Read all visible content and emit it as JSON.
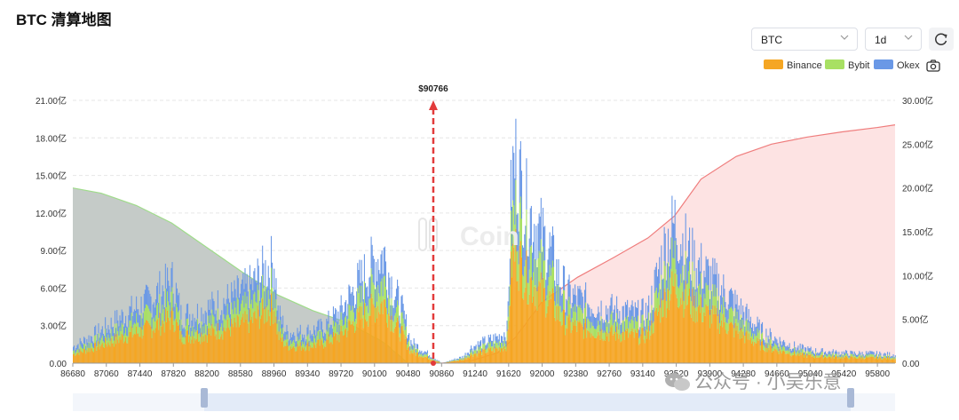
{
  "header": {
    "title": "BTC 清算地图"
  },
  "controls": {
    "coin_select": {
      "value": "BTC"
    },
    "period_select": {
      "value": "1d"
    },
    "refresh_icon": "refresh-icon",
    "camera_icon": "camera-icon"
  },
  "legend": [
    {
      "name": "Binance",
      "color": "#f5a623"
    },
    {
      "name": "Bybit",
      "color": "#a8e063"
    },
    {
      "name": "Okex",
      "color": "#6a98e6"
    }
  ],
  "watermark": {
    "text": "公众号 · 小吴乐意",
    "brand": "Coin"
  },
  "chart_data": {
    "type": "bar",
    "current_price_label": "$90766",
    "current_price": 90766,
    "x_ticks": [
      "86680",
      "87060",
      "87440",
      "87820",
      "88200",
      "88580",
      "88960",
      "89340",
      "89720",
      "90100",
      "90480",
      "90860",
      "91240",
      "91620",
      "92000",
      "92380",
      "92760",
      "93140",
      "93520",
      "93900",
      "94280",
      "94660",
      "95040",
      "95420",
      "95800"
    ],
    "x_range": [
      86680,
      96000
    ],
    "y_left": {
      "ticks": [
        "0.00",
        "3.00亿",
        "6.00亿",
        "9.00亿",
        "12.00亿",
        "15.00亿",
        "18.00亿",
        "21.00亿"
      ],
      "range": [
        0,
        21
      ]
    },
    "y_right": {
      "ticks": [
        "0.00",
        "5.00亿",
        "10.00亿",
        "15.00亿",
        "20.00亿",
        "25.00亿",
        "30.00亿"
      ],
      "range": [
        0,
        30
      ]
    },
    "grid": true,
    "legend_position": "top-right",
    "bar_profile_total": {
      "x": [
        86680,
        86900,
        87100,
        87300,
        87500,
        87700,
        87820,
        87900,
        88100,
        88300,
        88500,
        88700,
        88800,
        88960,
        89000,
        89100,
        89300,
        89500,
        89700,
        89900,
        90000,
        90100,
        90200,
        90300,
        90400,
        90480,
        90500,
        90860,
        91100,
        91200,
        91300,
        91500,
        91600,
        91650,
        91700,
        91800,
        91900,
        92000,
        92100,
        92200,
        92300,
        92500,
        92700,
        92900,
        93100,
        93200,
        93300,
        93400,
        93500,
        93600,
        93700,
        93900,
        94100,
        94300,
        94500,
        94700,
        94900,
        95100,
        95300,
        95500,
        95700,
        95900,
        96000
      ],
      "values": [
        1.5,
        2.5,
        3.5,
        4.6,
        5.5,
        6.8,
        7.5,
        4.4,
        4.6,
        5.3,
        6.0,
        7.0,
        8.0,
        9.3,
        4.6,
        2.8,
        2.8,
        3.2,
        4.6,
        7.2,
        8.2,
        9.4,
        10.0,
        7.0,
        5.0,
        2.8,
        2.0,
        0,
        0.6,
        1.5,
        1.8,
        2.4,
        3.0,
        17.0,
        18.5,
        14.5,
        13.0,
        11.5,
        10.0,
        7.5,
        6.2,
        5.6,
        5.0,
        4.8,
        4.4,
        4.8,
        8.0,
        11.0,
        12.8,
        11.0,
        9.5,
        7.8,
        6.2,
        4.4,
        2.8,
        2.0,
        1.4,
        1.1,
        1.0,
        0.9,
        0.9,
        0.8,
        0.8
      ]
    },
    "exchange_share": {
      "Binance": 0.55,
      "Bybit": 0.2,
      "Okex": 0.25
    },
    "cumulative_short_side": {
      "x": [
        86680,
        87000,
        87400,
        87800,
        88200,
        88600,
        89000,
        89400,
        89800,
        90200,
        90480
      ],
      "values": [
        20.0,
        19.4,
        18.0,
        16.0,
        13.2,
        10.4,
        7.8,
        6.0,
        4.6,
        2.4,
        0
      ]
    },
    "cumulative_long_side": {
      "x": [
        90860,
        91200,
        91500,
        91700,
        92000,
        92400,
        92800,
        93200,
        93500,
        93800,
        94200,
        94600,
        95000,
        95400,
        95800,
        96000
      ],
      "values": [
        0,
        0.3,
        1.2,
        3.0,
        7.0,
        9.8,
        12.0,
        14.3,
        16.8,
        21.0,
        23.6,
        25.0,
        25.8,
        26.4,
        26.9,
        27.2
      ]
    }
  }
}
